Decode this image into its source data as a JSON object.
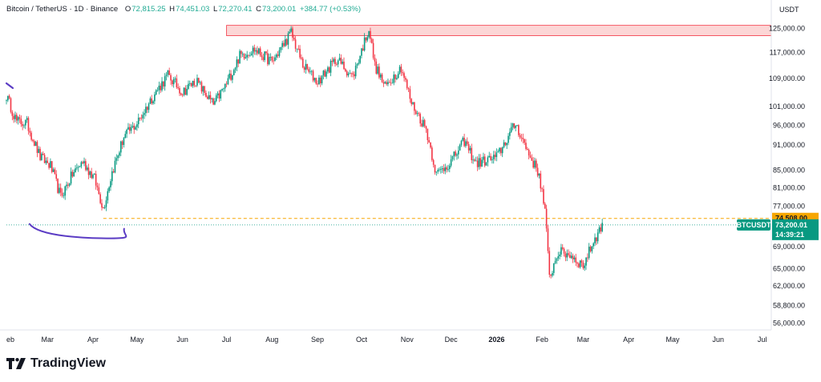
{
  "header": {
    "symbol": "Bitcoin / TetherUS · 1D · Binance",
    "o_label": "O",
    "o_value": "72,815.25",
    "h_label": "H",
    "h_value": "74,451.03",
    "l_label": "L",
    "l_value": "72,270.41",
    "c_label": "C",
    "c_value": "73,200.01",
    "change": "+384.77 (+0.53%)"
  },
  "currency": "USDT",
  "brand": "TradingView",
  "colors": {
    "up": "#089981",
    "down": "#f23645",
    "accent_orange": "#f7a600",
    "price_tag": "#089981",
    "zone_fill": "#fcd6d6",
    "zone_border": "#f23645",
    "drawing": "#5b3cc4"
  },
  "chart_data": {
    "type": "candlestick",
    "title": "",
    "y_scale": "log",
    "ylim": [
      55000,
      135000
    ],
    "y_ticks": [
      {
        "value": 125000,
        "label": "125,000.00"
      },
      {
        "value": 117000,
        "label": "117,000.00"
      },
      {
        "value": 109000,
        "label": "109,000.00"
      },
      {
        "value": 101000,
        "label": "101,000.00"
      },
      {
        "value": 96000,
        "label": "96,000.00"
      },
      {
        "value": 91000,
        "label": "91,000.00"
      },
      {
        "value": 85000,
        "label": "85,000.00"
      },
      {
        "value": 81000,
        "label": "81,000.00"
      },
      {
        "value": 77000,
        "label": "77,000.00"
      },
      {
        "value": 69000,
        "label": "69,000.00"
      },
      {
        "value": 65000,
        "label": "65,000.00"
      },
      {
        "value": 62000,
        "label": "62,000.00"
      },
      {
        "value": 58800,
        "label": "58,800.00"
      },
      {
        "value": 56000,
        "label": "56,000.00"
      }
    ],
    "x_ticks": [
      {
        "date": "2025-02-01",
        "label": "eb"
      },
      {
        "date": "2025-03-01",
        "label": "Mar"
      },
      {
        "date": "2025-04-01",
        "label": "Apr"
      },
      {
        "date": "2025-05-01",
        "label": "May"
      },
      {
        "date": "2025-06-01",
        "label": "Jun"
      },
      {
        "date": "2025-07-01",
        "label": "Jul"
      },
      {
        "date": "2025-08-01",
        "label": "Aug"
      },
      {
        "date": "2025-09-01",
        "label": "Sep"
      },
      {
        "date": "2025-10-01",
        "label": "Oct"
      },
      {
        "date": "2025-11-01",
        "label": "Nov"
      },
      {
        "date": "2025-12-01",
        "label": "Dec"
      },
      {
        "date": "2026-01-01",
        "label": "2026"
      },
      {
        "date": "2026-02-01",
        "label": "Feb"
      },
      {
        "date": "2026-03-01",
        "label": "Mar"
      },
      {
        "date": "2026-04-01",
        "label": "Apr"
      },
      {
        "date": "2026-05-01",
        "label": "May"
      },
      {
        "date": "2026-06-01",
        "label": "Jun"
      },
      {
        "date": "2026-07-01",
        "label": "Jul"
      }
    ],
    "x_range": [
      "2025-02-01",
      "2026-07-05"
    ],
    "closes": [
      {
        "date": "2025-02-01",
        "close": 104000
      },
      {
        "date": "2025-02-08",
        "close": 97000
      },
      {
        "date": "2025-02-15",
        "close": 96500
      },
      {
        "date": "2025-02-24",
        "close": 88000
      },
      {
        "date": "2025-03-03",
        "close": 86000
      },
      {
        "date": "2025-03-10",
        "close": 79000
      },
      {
        "date": "2025-03-18",
        "close": 84000
      },
      {
        "date": "2025-03-25",
        "close": 87000
      },
      {
        "date": "2025-04-02",
        "close": 83000
      },
      {
        "date": "2025-04-08",
        "close": 76500
      },
      {
        "date": "2025-04-14",
        "close": 84500
      },
      {
        "date": "2025-04-22",
        "close": 93000
      },
      {
        "date": "2025-05-01",
        "close": 96500
      },
      {
        "date": "2025-05-12",
        "close": 104000
      },
      {
        "date": "2025-05-22",
        "close": 110000
      },
      {
        "date": "2025-06-01",
        "close": 105000
      },
      {
        "date": "2025-06-10",
        "close": 108500
      },
      {
        "date": "2025-06-22",
        "close": 101500
      },
      {
        "date": "2025-07-01",
        "close": 107500
      },
      {
        "date": "2025-07-10",
        "close": 116000
      },
      {
        "date": "2025-07-20",
        "close": 118000
      },
      {
        "date": "2025-08-01",
        "close": 114000
      },
      {
        "date": "2025-08-14",
        "close": 123500
      },
      {
        "date": "2025-08-22",
        "close": 113000
      },
      {
        "date": "2025-09-01",
        "close": 108000
      },
      {
        "date": "2025-09-14",
        "close": 115000
      },
      {
        "date": "2025-09-25",
        "close": 109500
      },
      {
        "date": "2025-10-06",
        "close": 125000
      },
      {
        "date": "2025-10-10",
        "close": 113000
      },
      {
        "date": "2025-10-17",
        "close": 106500
      },
      {
        "date": "2025-10-28",
        "close": 112500
      },
      {
        "date": "2025-11-04",
        "close": 102000
      },
      {
        "date": "2025-11-14",
        "close": 95000
      },
      {
        "date": "2025-11-21",
        "close": 84000
      },
      {
        "date": "2025-12-01",
        "close": 87000
      },
      {
        "date": "2025-12-10",
        "close": 92000
      },
      {
        "date": "2025-12-18",
        "close": 86500
      },
      {
        "date": "2026-01-01",
        "close": 88000
      },
      {
        "date": "2026-01-14",
        "close": 96500
      },
      {
        "date": "2026-01-22",
        "close": 89500
      },
      {
        "date": "2026-01-30",
        "close": 84000
      },
      {
        "date": "2026-02-03",
        "close": 76000
      },
      {
        "date": "2026-02-06",
        "close": 63500
      },
      {
        "date": "2026-02-12",
        "close": 68000
      },
      {
        "date": "2026-02-20",
        "close": 67500
      },
      {
        "date": "2026-03-01",
        "close": 65500
      },
      {
        "date": "2026-03-08",
        "close": 70000
      },
      {
        "date": "2026-03-14",
        "close": 73200
      }
    ],
    "resistance_zone": {
      "start": "2025-07-01",
      "y_low": 122500,
      "y_high": 126000
    },
    "support_line": {
      "start": "2025-04-08",
      "value": 74508
    },
    "current_price": {
      "value": 73200.01,
      "label": "73,200.01",
      "symbol": "BTCUSDT",
      "countdown": "14:39:21"
    },
    "level_label": "74,508.00"
  }
}
